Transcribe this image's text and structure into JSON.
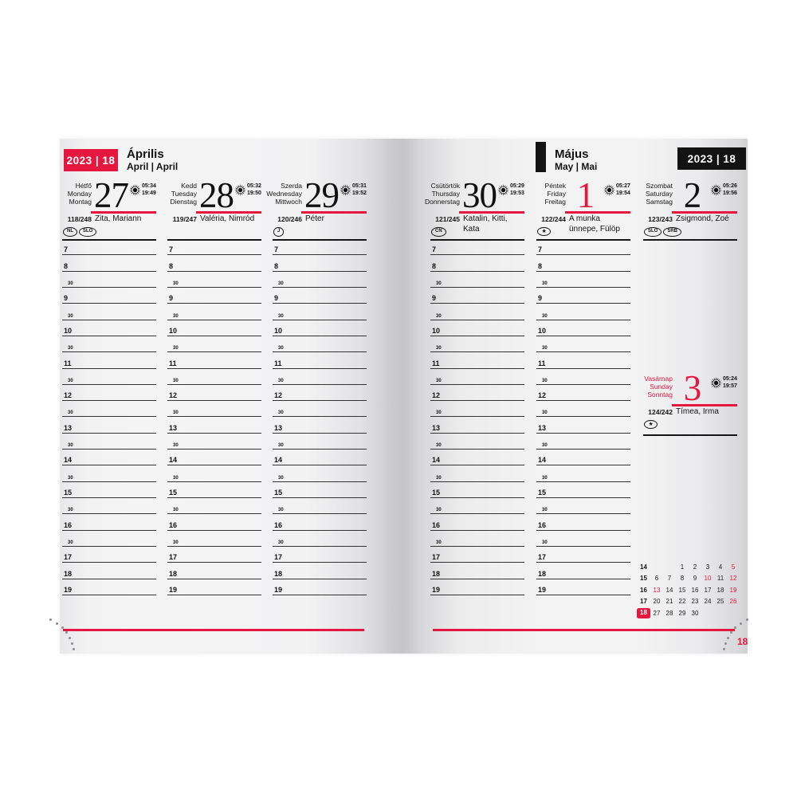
{
  "colors": {
    "accent_red": "#e5173f",
    "ink": "#161616"
  },
  "time_slots": [
    "7",
    "8",
    "30",
    "9",
    "30",
    "10",
    "30",
    "11",
    "30",
    "12",
    "30",
    "13",
    "30",
    "14",
    "30",
    "15",
    "30",
    "16",
    "30",
    "17",
    "18",
    "19"
  ],
  "left_page": {
    "week_badge": "2023 | 18",
    "month_title": "Április",
    "month_subtitle": "April | April",
    "days": [
      {
        "names": [
          "Hétfő",
          "Monday",
          "Montag"
        ],
        "number": "27",
        "number_red": false,
        "sunrise": "05:34",
        "sunset": "19:49",
        "day_of_year": "118/248",
        "nameday_lines": [
          "Zita, Mariann"
        ],
        "flags": [
          "NL",
          "SLO"
        ]
      },
      {
        "names": [
          "Kedd",
          "Tuesday",
          "Dienstag"
        ],
        "number": "28",
        "number_red": false,
        "sunrise": "05:32",
        "sunset": "19:50",
        "day_of_year": "119/247",
        "nameday_lines": [
          "Valéria, Nimród"
        ],
        "flags": []
      },
      {
        "names": [
          "Szerda",
          "Wednesday",
          "Mittwoch"
        ],
        "number": "29",
        "number_red": false,
        "sunrise": "05:31",
        "sunset": "19:52",
        "day_of_year": "120/246",
        "nameday_lines": [
          "Péter"
        ],
        "flags": [
          "J"
        ]
      }
    ]
  },
  "right_page": {
    "week_badge": "2023 | 18",
    "month_title": "Május",
    "month_subtitle": "May | Mai",
    "page_number": "18",
    "days": [
      {
        "names": [
          "Csütörtök",
          "Thursday",
          "Donnerstag"
        ],
        "number": "30",
        "number_red": false,
        "sunrise": "05:29",
        "sunset": "19:53",
        "day_of_year": "121/245",
        "nameday_lines": [
          "Katalin, Kitti,",
          "Kata"
        ],
        "flags": [
          "CN"
        ]
      },
      {
        "names": [
          "Péntek",
          "Friday",
          "Freitag"
        ],
        "number": "1",
        "number_red": true,
        "sunrise": "05:27",
        "sunset": "19:54",
        "day_of_year": "122/244",
        "nameday_lines": [
          "A munka",
          "ünnepe, Fülöp"
        ],
        "flags": [
          "★"
        ]
      },
      {
        "names": [
          "Szombat",
          "Saturday",
          "Samstag"
        ],
        "number": "2",
        "number_red": false,
        "sunrise": "05:26",
        "sunset": "19:56",
        "day_of_year": "123/243",
        "nameday_lines": [
          "Zsigmond, Zoé"
        ],
        "flags": [
          "SLO",
          "SRB"
        ]
      }
    ],
    "sunday": {
      "names": [
        "Vasárnap",
        "Sunday",
        "Sonntag"
      ],
      "number": "3",
      "number_red": true,
      "sunrise": "05:24",
      "sunset": "19:57",
      "day_of_year": "124/242",
      "nameday_lines": [
        "Tímea, Irma"
      ],
      "flags": [
        "★"
      ]
    },
    "mini_calendar": {
      "rows": [
        {
          "week": "14",
          "week_highlight": false,
          "days": [
            {
              "t": "",
              "red": false
            },
            {
              "t": "",
              "red": false
            },
            {
              "t": "1",
              "red": false
            },
            {
              "t": "2",
              "red": false
            },
            {
              "t": "3",
              "red": false
            },
            {
              "t": "4",
              "red": false
            },
            {
              "t": "5",
              "red": true
            }
          ]
        },
        {
          "week": "15",
          "week_highlight": false,
          "days": [
            {
              "t": "6",
              "red": false
            },
            {
              "t": "7",
              "red": false
            },
            {
              "t": "8",
              "red": false
            },
            {
              "t": "9",
              "red": false
            },
            {
              "t": "10",
              "red": true
            },
            {
              "t": "11",
              "red": false
            },
            {
              "t": "12",
              "red": true
            }
          ]
        },
        {
          "week": "16",
          "week_highlight": false,
          "days": [
            {
              "t": "13",
              "red": true
            },
            {
              "t": "14",
              "red": false
            },
            {
              "t": "15",
              "red": false
            },
            {
              "t": "16",
              "red": false
            },
            {
              "t": "17",
              "red": false
            },
            {
              "t": "18",
              "red": false
            },
            {
              "t": "19",
              "red": true
            }
          ]
        },
        {
          "week": "17",
          "week_highlight": false,
          "days": [
            {
              "t": "20",
              "red": false
            },
            {
              "t": "21",
              "red": false
            },
            {
              "t": "22",
              "red": false
            },
            {
              "t": "23",
              "red": false
            },
            {
              "t": "24",
              "red": false
            },
            {
              "t": "25",
              "red": false
            },
            {
              "t": "26",
              "red": true
            }
          ]
        },
        {
          "week": "18",
          "week_highlight": true,
          "days": [
            {
              "t": "27",
              "red": false
            },
            {
              "t": "28",
              "red": false
            },
            {
              "t": "29",
              "red": false
            },
            {
              "t": "30",
              "red": false
            },
            {
              "t": "",
              "red": false
            },
            {
              "t": "",
              "red": false
            },
            {
              "t": "",
              "red": false
            }
          ]
        }
      ]
    }
  }
}
